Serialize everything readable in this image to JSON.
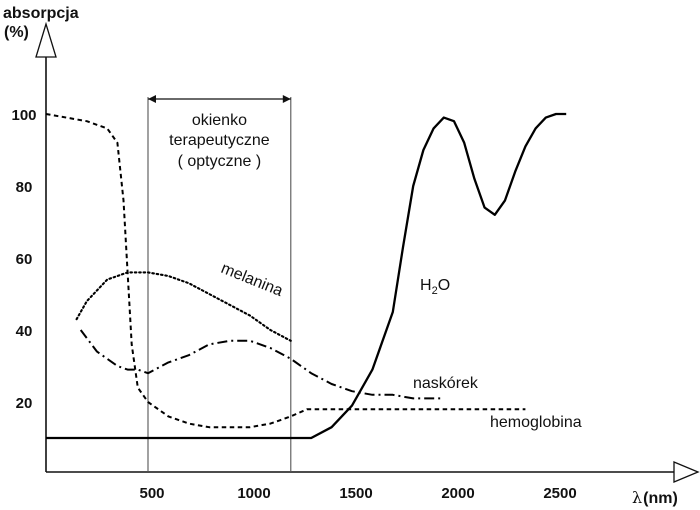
{
  "chart_data": {
    "type": "line",
    "title": "",
    "ylabel_line1": "absorpcja",
    "ylabel_line2": "(%)",
    "xlabel_symbol": "λ",
    "xlabel_unit": "(nm)",
    "y_ticks": [
      20,
      40,
      60,
      80,
      100
    ],
    "x_ticks": [
      500,
      1000,
      1500,
      2000,
      2500
    ],
    "window": {
      "start": 500,
      "end": 1200,
      "label_lines": [
        "okienko",
        "terapeutyczne",
        "( optyczne )"
      ]
    },
    "series": [
      {
        "name": "H2O",
        "label_main": "H",
        "label_sub": "2",
        "label_tail": "O",
        "color": "#000000",
        "style": "solid",
        "points": [
          [
            0,
            10
          ],
          [
            400,
            10
          ],
          [
            800,
            10
          ],
          [
            1200,
            10
          ],
          [
            1300,
            10
          ],
          [
            1400,
            13
          ],
          [
            1500,
            19
          ],
          [
            1600,
            29
          ],
          [
            1700,
            45
          ],
          [
            1750,
            63
          ],
          [
            1800,
            80
          ],
          [
            1850,
            90
          ],
          [
            1900,
            96
          ],
          [
            1950,
            99
          ],
          [
            2000,
            98
          ],
          [
            2050,
            92
          ],
          [
            2100,
            82
          ],
          [
            2150,
            74
          ],
          [
            2200,
            72
          ],
          [
            2250,
            76
          ],
          [
            2300,
            84
          ],
          [
            2350,
            91
          ],
          [
            2400,
            96
          ],
          [
            2450,
            99
          ],
          [
            2500,
            100
          ],
          [
            2550,
            100
          ]
        ]
      },
      {
        "name": "melanina",
        "label": "melanina",
        "color": "#000000",
        "style": "dotted",
        "points": [
          [
            150,
            43
          ],
          [
            200,
            48
          ],
          [
            250,
            51
          ],
          [
            300,
            54
          ],
          [
            400,
            56
          ],
          [
            500,
            56
          ],
          [
            600,
            55
          ],
          [
            700,
            53
          ],
          [
            800,
            50
          ],
          [
            900,
            47
          ],
          [
            1000,
            44
          ],
          [
            1100,
            40
          ],
          [
            1200,
            37
          ]
        ]
      },
      {
        "name": "naskórek",
        "label": "naskórek",
        "color": "#000000",
        "style": "dashdot",
        "points": [
          [
            170,
            40
          ],
          [
            250,
            34
          ],
          [
            350,
            30
          ],
          [
            400,
            29
          ],
          [
            450,
            29
          ],
          [
            500,
            28
          ],
          [
            600,
            31
          ],
          [
            700,
            33
          ],
          [
            800,
            36
          ],
          [
            900,
            37
          ],
          [
            1000,
            37
          ],
          [
            1100,
            35
          ],
          [
            1200,
            32
          ],
          [
            1300,
            28
          ],
          [
            1400,
            25
          ],
          [
            1500,
            23
          ],
          [
            1600,
            22
          ],
          [
            1700,
            22
          ],
          [
            1800,
            21
          ],
          [
            1900,
            21
          ],
          [
            1950,
            21
          ]
        ]
      },
      {
        "name": "hemoglobina",
        "label": "hemoglobina",
        "color": "#000000",
        "style": "dashed",
        "points": [
          [
            0,
            100
          ],
          [
            100,
            99
          ],
          [
            200,
            98
          ],
          [
            300,
            96
          ],
          [
            350,
            92
          ],
          [
            380,
            76
          ],
          [
            400,
            56
          ],
          [
            420,
            36
          ],
          [
            450,
            24
          ],
          [
            500,
            20
          ],
          [
            600,
            16
          ],
          [
            700,
            14
          ],
          [
            800,
            13
          ],
          [
            900,
            13
          ],
          [
            1000,
            13
          ],
          [
            1100,
            14
          ],
          [
            1200,
            16
          ],
          [
            1280,
            18
          ],
          [
            1400,
            18
          ],
          [
            1600,
            18
          ],
          [
            1800,
            18
          ],
          [
            2000,
            18
          ],
          [
            2200,
            18
          ],
          [
            2350,
            18
          ]
        ]
      }
    ]
  }
}
